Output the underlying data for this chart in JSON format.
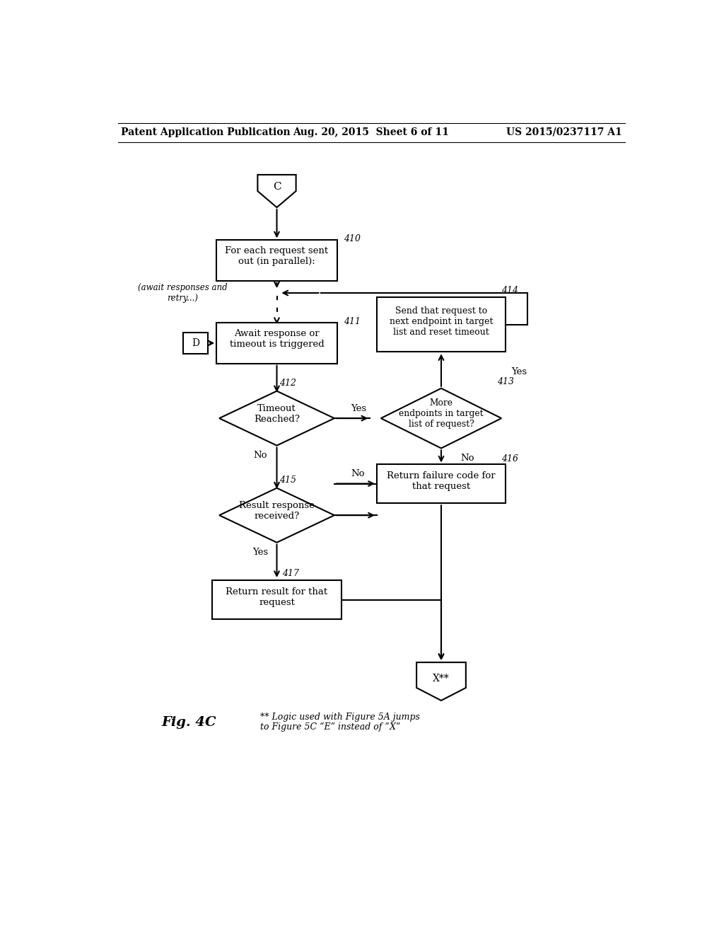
{
  "title_left": "Patent Application Publication",
  "title_center": "Aug. 20, 2015  Sheet 6 of 11",
  "title_right": "US 2015/0237117 A1",
  "fig_label": "Fig. 4C",
  "fig_note_line1": "** Logic used with Figure 5A jumps",
  "fig_note_line2": "to Figure 5C “E” instead of “X”",
  "background": "#ffffff",
  "line_color": "#000000",
  "box_color": "#ffffff",
  "text_color": "#000000"
}
